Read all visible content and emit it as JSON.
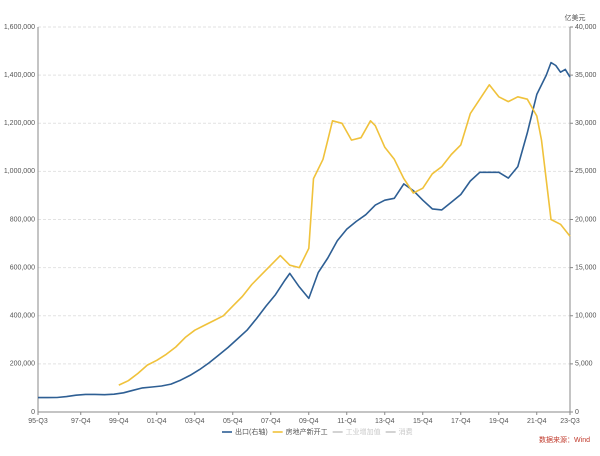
{
  "chart_data": {
    "type": "line",
    "y2_label": "亿美元",
    "source": "数据来源：Wind",
    "xlim": [
      1995.5,
      2023.5
    ],
    "xticks": [
      {
        "value": 1995.5,
        "label": "95-Q3"
      },
      {
        "value": 1997.75,
        "label": "97-Q4"
      },
      {
        "value": 1999.75,
        "label": "99-Q4"
      },
      {
        "value": 2001.75,
        "label": "01-Q4"
      },
      {
        "value": 2003.75,
        "label": "03-Q4"
      },
      {
        "value": 2005.75,
        "label": "05-Q4"
      },
      {
        "value": 2007.75,
        "label": "07-Q4"
      },
      {
        "value": 2009.75,
        "label": "09-Q4"
      },
      {
        "value": 2011.75,
        "label": "11-Q4"
      },
      {
        "value": 2013.75,
        "label": "13-Q4"
      },
      {
        "value": 2015.75,
        "label": "15-Q4"
      },
      {
        "value": 2017.75,
        "label": "17-Q4"
      },
      {
        "value": 2019.75,
        "label": "19-Q4"
      },
      {
        "value": 2021.75,
        "label": "21-Q4"
      },
      {
        "value": 2023.5,
        "label": "23-Q3"
      }
    ],
    "ylim": [
      0,
      1600000
    ],
    "yticks": [
      0,
      {
        "value": 200000,
        "label": "200,000"
      },
      {
        "value": 400000,
        "label": "400,000"
      },
      {
        "value": 600000,
        "label": "600,000"
      },
      {
        "value": 800000,
        "label": "800,000"
      },
      {
        "value": 1000000,
        "label": "1,000,000"
      },
      {
        "value": 1200000,
        "label": "1,200,000"
      },
      {
        "value": 1400000,
        "label": "1,400,000"
      },
      {
        "value": 1600000,
        "label": "1,600,000"
      }
    ],
    "y2lim": [
      0,
      40000
    ],
    "y2ticks": [
      0,
      {
        "value": 5000,
        "label": "5,000"
      },
      {
        "value": 10000,
        "label": "10,000"
      },
      {
        "value": 15000,
        "label": "15,000"
      },
      {
        "value": 20000,
        "label": "20,000"
      },
      {
        "value": 25000,
        "label": "25,000"
      },
      {
        "value": 30000,
        "label": "30,000"
      },
      {
        "value": 35000,
        "label": "35,000"
      },
      {
        "value": 40000,
        "label": "40,000"
      }
    ],
    "grid": true,
    "series": [
      {
        "name": "出口(右轴)",
        "color": "#2e5f94",
        "axis": "y2",
        "x": [
          1995.5,
          1996,
          1996.5,
          1997,
          1997.5,
          1998,
          1998.5,
          1999,
          1999.5,
          2000,
          2000.5,
          2001,
          2001.5,
          2002,
          2002.5,
          2003,
          2003.5,
          2004,
          2004.5,
          2005,
          2005.5,
          2006,
          2006.5,
          2007,
          2007.5,
          2008,
          2008.5,
          2008.75,
          2009.25,
          2009.75,
          2010.25,
          2010.75,
          2011.25,
          2011.75,
          2012.25,
          2012.75,
          2013.25,
          2013.75,
          2014.25,
          2014.75,
          2015.25,
          2015.75,
          2016.25,
          2016.75,
          2017.25,
          2017.75,
          2018.25,
          2018.75,
          2019.25,
          2019.75,
          2020.25,
          2020.75,
          2021.25,
          2021.75,
          2022.25,
          2022.5,
          2022.75,
          2023,
          2023.25,
          2023.5
        ],
        "values": [
          1500,
          1500,
          1510,
          1600,
          1750,
          1830,
          1830,
          1800,
          1850,
          2000,
          2250,
          2500,
          2600,
          2700,
          2900,
          3300,
          3800,
          4400,
          5100,
          5900,
          6700,
          7600,
          8500,
          9700,
          11000,
          12200,
          13700,
          14400,
          13000,
          11800,
          14500,
          16000,
          17800,
          19000,
          19800,
          20500,
          21500,
          22000,
          22200,
          23700,
          23000,
          22000,
          21100,
          21000,
          21800,
          22600,
          24000,
          24900,
          24900,
          24900,
          24300,
          25500,
          29000,
          33000,
          35000,
          36300,
          36000,
          35300,
          35600,
          34800
        ]
      },
      {
        "name": "房地产新开工",
        "color": "#f0c23b",
        "x": [
          1999.75,
          2000.25,
          2000.75,
          2001.25,
          2001.75,
          2002.25,
          2002.75,
          2003.25,
          2003.75,
          2004.25,
          2004.75,
          2005.25,
          2005.75,
          2006.25,
          2006.75,
          2007.25,
          2007.75,
          2008.25,
          2008.75,
          2009.25,
          2009.75,
          2010,
          2010.5,
          2010.75,
          2011,
          2011.5,
          2012,
          2012.5,
          2013,
          2013.25,
          2013.75,
          2014.25,
          2014.75,
          2015.25,
          2015.75,
          2016.25,
          2016.75,
          2017.25,
          2017.75,
          2018.25,
          2018.75,
          2019.25,
          2019.75,
          2020.25,
          2020.75,
          2021.25,
          2021.75,
          2022,
          2022.5,
          2023,
          2023.5
        ],
        "values": [
          112000,
          130000,
          160000,
          195000,
          215000,
          240000,
          270000,
          310000,
          340000,
          360000,
          380000,
          400000,
          440000,
          480000,
          530000,
          570000,
          610000,
          650000,
          610000,
          600000,
          680000,
          970000,
          1050000,
          1130000,
          1210000,
          1200000,
          1130000,
          1140000,
          1210000,
          1190000,
          1100000,
          1050000,
          970000,
          910000,
          930000,
          990000,
          1020000,
          1070000,
          1110000,
          1240000,
          1300000,
          1360000,
          1310000,
          1290000,
          1310000,
          1300000,
          1230000,
          1130000,
          800000,
          780000,
          730000
        ]
      },
      {
        "name": "工业增加值",
        "color": "#c8c8c8"
      },
      {
        "name": "消费",
        "color": "#c8c8c8"
      }
    ]
  }
}
